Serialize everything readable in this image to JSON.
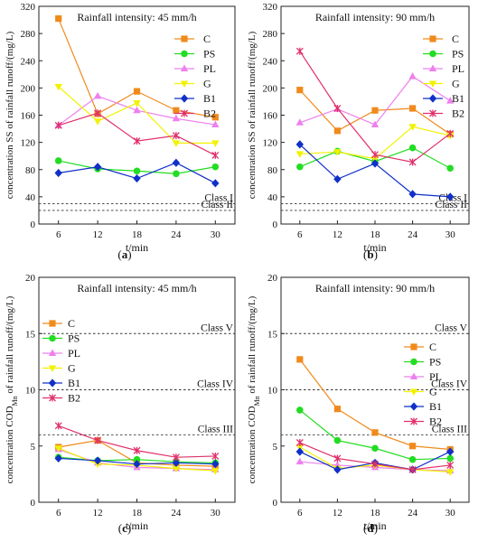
{
  "figure": {
    "panel_labels": [
      "(a)",
      "(b)",
      "(c)",
      "(d)"
    ]
  },
  "series_style": {
    "C": {
      "color": "#F08A1C",
      "marker": "square"
    },
    "PS": {
      "color": "#22DD22",
      "marker": "circle"
    },
    "PL": {
      "color": "#EE80EE",
      "marker": "triangle"
    },
    "G": {
      "color": "#F2F200",
      "marker": "triangle-down"
    },
    "B1": {
      "color": "#1030C8",
      "marker": "diamond"
    },
    "B2": {
      "color": "#E0306A",
      "marker": "x"
    }
  },
  "chart_data": [
    {
      "type": "line",
      "title": "Rainfall intensity: 45 mm/h",
      "xlabel": "t/min",
      "ylabel": "concentration SS of rainfall runoff/(mg/L)",
      "ylabel_sub": "",
      "ylabel_post": "",
      "x": [
        6,
        12,
        18,
        24,
        30
      ],
      "xlim": [
        3,
        33
      ],
      "ylim": [
        0,
        320
      ],
      "yticks": [
        0,
        40,
        80,
        120,
        160,
        200,
        240,
        280,
        320
      ],
      "legend_position": "upper-right",
      "series": [
        {
          "name": "C",
          "values": [
            302,
            162,
            195,
            167,
            157
          ]
        },
        {
          "name": "PS",
          "values": [
            93,
            81,
            78,
            74,
            84
          ]
        },
        {
          "name": "PL",
          "values": [
            145,
            188,
            167,
            155,
            146
          ]
        },
        {
          "name": "G",
          "values": [
            202,
            151,
            178,
            119,
            119
          ]
        },
        {
          "name": "B1",
          "values": [
            75,
            84,
            67,
            90,
            60
          ]
        },
        {
          "name": "B2",
          "values": [
            145,
            163,
            122,
            130,
            101
          ]
        }
      ],
      "reference_lines": [
        {
          "label": "Class I",
          "value": 30
        },
        {
          "label": "Class II",
          "value": 20
        }
      ]
    },
    {
      "type": "line",
      "title": "Rainfall intensity: 90 mm/h",
      "xlabel": "t/min",
      "ylabel": "concentration SS of rainfall runoff/(mg/L)",
      "ylabel_sub": "",
      "ylabel_post": "",
      "x": [
        6,
        12,
        18,
        24,
        30
      ],
      "xlim": [
        3,
        33
      ],
      "ylim": [
        0,
        320
      ],
      "yticks": [
        0,
        40,
        80,
        120,
        160,
        200,
        240,
        280,
        320
      ],
      "legend_position": "upper-right",
      "series": [
        {
          "name": "C",
          "values": [
            197,
            137,
            167,
            170,
            132
          ]
        },
        {
          "name": "PS",
          "values": [
            84,
            107,
            92,
            112,
            82
          ]
        },
        {
          "name": "PL",
          "values": [
            149,
            169,
            146,
            217,
            181
          ]
        },
        {
          "name": "G",
          "values": [
            103,
            106,
            96,
            143,
            130
          ]
        },
        {
          "name": "B1",
          "values": [
            117,
            66,
            89,
            44,
            40
          ]
        },
        {
          "name": "B2",
          "values": [
            254,
            170,
            102,
            91,
            133
          ]
        }
      ],
      "reference_lines": [
        {
          "label": "Class I",
          "value": 30
        },
        {
          "label": "Class II",
          "value": 20
        }
      ]
    },
    {
      "type": "line",
      "title": "Rainfall intensity: 45 mm/h",
      "xlabel": "t/min",
      "ylabel": "concentration COD",
      "ylabel_sub": "Mn",
      "ylabel_post": " of rainfall runoff/(mg/L)",
      "x": [
        6,
        12,
        18,
        24,
        30
      ],
      "xlim": [
        3,
        33
      ],
      "ylim": [
        0,
        20
      ],
      "yticks": [
        0,
        5,
        10,
        15,
        20
      ],
      "legend_position": "left",
      "series": [
        {
          "name": "C",
          "values": [
            4.9,
            5.5,
            3.5,
            3.3,
            3.2
          ]
        },
        {
          "name": "PS",
          "values": [
            4.0,
            3.7,
            3.8,
            3.6,
            3.5
          ]
        },
        {
          "name": "PL",
          "values": [
            4.7,
            3.5,
            3.1,
            3.0,
            2.9
          ]
        },
        {
          "name": "G",
          "values": [
            4.8,
            3.4,
            3.3,
            3.0,
            2.8
          ]
        },
        {
          "name": "B1",
          "values": [
            3.9,
            3.7,
            3.4,
            3.5,
            3.4
          ]
        },
        {
          "name": "B2",
          "values": [
            6.8,
            5.5,
            4.6,
            4.0,
            4.1
          ]
        }
      ],
      "reference_lines": [
        {
          "label": "Class V",
          "value": 15
        },
        {
          "label": "Class IV",
          "value": 10
        },
        {
          "label": "Class III",
          "value": 6
        }
      ]
    },
    {
      "type": "line",
      "title": "Rainfall intensity: 90 mm/h",
      "xlabel": "t/min",
      "ylabel": "concentration COD",
      "ylabel_sub": "Mn",
      "ylabel_post": " of rainfall runoff/(mg/L)",
      "x": [
        6,
        12,
        18,
        24,
        30
      ],
      "xlim": [
        3,
        33
      ],
      "ylim": [
        0,
        20
      ],
      "yticks": [
        0,
        5,
        10,
        15,
        20
      ],
      "legend_position": "center",
      "series": [
        {
          "name": "C",
          "values": [
            12.7,
            8.3,
            6.2,
            5.0,
            4.7
          ]
        },
        {
          "name": "PS",
          "values": [
            8.2,
            5.5,
            4.8,
            3.8,
            3.9
          ]
        },
        {
          "name": "PL",
          "values": [
            3.6,
            3.3,
            3.1,
            2.9,
            2.8
          ]
        },
        {
          "name": "G",
          "values": [
            4.9,
            3.0,
            3.3,
            2.9,
            2.7
          ]
        },
        {
          "name": "B1",
          "values": [
            4.5,
            2.9,
            3.5,
            2.9,
            4.5
          ]
        },
        {
          "name": "B2",
          "values": [
            5.3,
            3.9,
            3.4,
            2.9,
            3.3
          ]
        }
      ],
      "reference_lines": [
        {
          "label": "Class V",
          "value": 15
        },
        {
          "label": "Class IV",
          "value": 10
        },
        {
          "label": "Class III",
          "value": 6
        }
      ]
    }
  ]
}
